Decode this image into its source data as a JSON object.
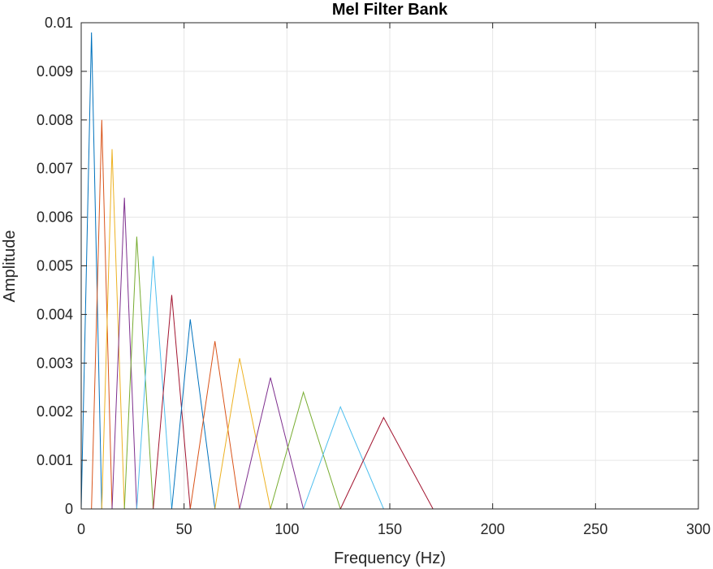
{
  "chart_data": {
    "type": "line",
    "title": "Mel Filter Bank",
    "xlabel": "Frequency (Hz)",
    "ylabel": "Amplitude",
    "xlim": [
      0,
      300
    ],
    "ylim": [
      0,
      0.01
    ],
    "grid": true,
    "xticks": [
      "0",
      "50",
      "100",
      "150",
      "200",
      "250",
      "300"
    ],
    "yticks": [
      "0",
      "0.001",
      "0.002",
      "0.003",
      "0.004",
      "0.005",
      "0.006",
      "0.007",
      "0.008",
      "0.009",
      "0.01"
    ],
    "colors": [
      "#0072BD",
      "#D95319",
      "#EDB120",
      "#7E2F8E",
      "#77AC30",
      "#4DBEEE",
      "#A2142F"
    ],
    "series": [
      {
        "x": [
          0,
          5,
          10,
          300
        ],
        "y": [
          0,
          0.0098,
          0,
          0
        ]
      },
      {
        "x": [
          5,
          10,
          15,
          300
        ],
        "y": [
          0,
          0.008,
          0,
          0
        ]
      },
      {
        "x": [
          10,
          15,
          21,
          300
        ],
        "y": [
          0,
          0.0074,
          0,
          0
        ]
      },
      {
        "x": [
          15,
          21,
          27,
          300
        ],
        "y": [
          0,
          0.0064,
          0,
          0
        ]
      },
      {
        "x": [
          21,
          27,
          35,
          300
        ],
        "y": [
          0,
          0.0056,
          0,
          0
        ]
      },
      {
        "x": [
          27,
          35,
          44,
          300
        ],
        "y": [
          0,
          0.0052,
          0,
          0
        ]
      },
      {
        "x": [
          35,
          44,
          53,
          300
        ],
        "y": [
          0,
          0.0044,
          0,
          0
        ]
      },
      {
        "x": [
          44,
          53,
          65,
          300
        ],
        "y": [
          0,
          0.0039,
          0,
          0
        ]
      },
      {
        "x": [
          53,
          65,
          77,
          300
        ],
        "y": [
          0,
          0.00345,
          0,
          0
        ]
      },
      {
        "x": [
          65,
          77,
          92,
          300
        ],
        "y": [
          0,
          0.0031,
          0,
          0
        ]
      },
      {
        "x": [
          77,
          92,
          108,
          300
        ],
        "y": [
          0,
          0.0027,
          0,
          0
        ]
      },
      {
        "x": [
          92,
          108,
          126,
          300
        ],
        "y": [
          0,
          0.0024,
          0,
          0
        ]
      },
      {
        "x": [
          108,
          126,
          147,
          300
        ],
        "y": [
          0,
          0.0021,
          0,
          0
        ]
      },
      {
        "x": [
          126,
          147,
          171,
          300
        ],
        "y": [
          0,
          0.00188,
          0,
          0
        ]
      }
    ]
  }
}
